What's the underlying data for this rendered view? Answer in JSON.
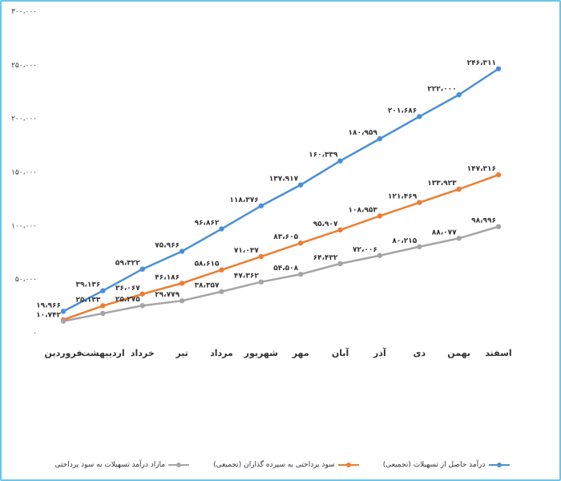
{
  "chart_data": {
    "type": "line",
    "categories": [
      "فروردین",
      "اردیبهشت",
      "خرداد",
      "تیر",
      "مرداد",
      "شهریور",
      "مهر",
      "آبان",
      "آذر",
      "دی",
      "بهمن",
      "اسفند"
    ],
    "ylim": [
      0,
      300000
    ],
    "y_ticks": [
      {
        "value": 0,
        "label": "۰"
      },
      {
        "value": 50000,
        "label": "۵۰،۰۰۰"
      },
      {
        "value": 100000,
        "label": "۱۰۰،۰۰۰"
      },
      {
        "value": 150000,
        "label": "۱۵۰،۰۰۰"
      },
      {
        "value": 200000,
        "label": "۲۰۰،۰۰۰"
      },
      {
        "value": 250000,
        "label": "۲۵۰،۰۰۰"
      },
      {
        "value": 300000,
        "label": "۳۰۰،۰۰۰"
      }
    ],
    "grid": false,
    "legend_position": "bottom",
    "series": [
      {
        "name": "درآمد حاصل از تسهیلات (تجمیعی)",
        "color": "#4a8fd8",
        "values": [
          19966,
          39136,
          59322,
          75966,
          96862,
          118376,
          137917,
          160339,
          180959,
          201686,
          222000,
          246311
        ],
        "labels": [
          "۱۹،۹۶۶",
          "۳۹،۱۳۶",
          "۵۹،۳۲۲",
          "۷۵،۹۶۶",
          "۹۶،۸۶۲",
          "۱۱۸،۳۷۶",
          "۱۳۷،۹۱۷",
          "۱۶۰،۳۳۹",
          "۱۸۰،۹۵۹",
          "۲۰۱،۶۸۶",
          "۲۲۲،۰۰۰",
          "۲۴۶،۳۱۱"
        ]
      },
      {
        "name": "سود پرداختی به سپرده گذاران (تجمیعی)",
        "color": "#ed7d31",
        "values": [
          12000,
          25133,
          36067,
          46186,
          58615,
          71037,
          83605,
          95907,
          108953,
          121469,
          133923,
          147316
        ],
        "labels": [
          "",
          "۲۵،۱۳۳",
          "۳۶،۰۶۷",
          "۴۶،۱۸۶",
          "۵۸،۶۱۵",
          "۷۱،۰۳۷",
          "۸۳،۶۰۵",
          "۹۵،۹۰۷",
          "۱۰۸،۹۵۳",
          "۱۲۱،۴۶۹",
          "۱۳۳،۹۲۳",
          "۱۴۷،۳۱۶"
        ]
      },
      {
        "name": "مازاد درآمد تسهیلات به سود پرداختی",
        "color": "#a5a5a5",
        "values": [
          10742,
          18000,
          25275,
          29779,
          38357,
          47362,
          54508,
          64432,
          72006,
          80215,
          88077,
          98996
        ],
        "labels": [
          "۱۰،۷۴۲",
          "",
          "۲۵،۲۷۵",
          "۲۹،۷۷۹",
          "۳۸،۳۵۷",
          "۴۷،۳۶۲",
          "۵۴،۵۰۸",
          "۶۴،۴۳۲",
          "۷۲،۰۰۶",
          "۸۰،۲۱۵",
          "۸۸،۰۷۷",
          "۹۸،۹۹۶"
        ]
      }
    ]
  }
}
